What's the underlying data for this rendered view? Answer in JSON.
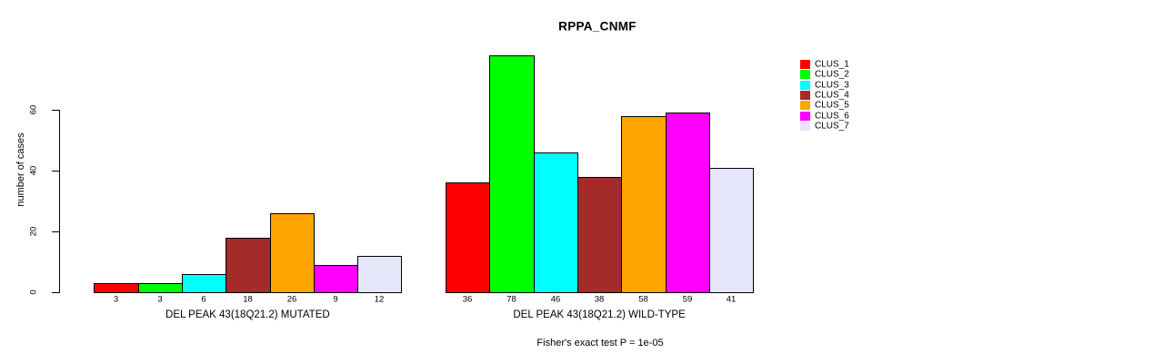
{
  "chart_data": {
    "type": "bar",
    "title": "RPPA_CNMF",
    "xlabel": "",
    "ylabel": "number of cases",
    "yticks": [
      0,
      20,
      40,
      60
    ],
    "ylim": [
      0,
      80
    ],
    "grid": false,
    "legend_position": "right",
    "clusters": [
      "CLUS_1",
      "CLUS_2",
      "CLUS_3",
      "CLUS_4",
      "CLUS_5",
      "CLUS_6",
      "CLUS_7"
    ],
    "colors": [
      "#FF0000",
      "#00FF00",
      "#00FFFF",
      "#A52A2A",
      "#FFA500",
      "#FF00FF",
      "#E6E6FA"
    ],
    "groups": [
      {
        "label": "DEL PEAK 43(18Q21.2) MUTATED",
        "values": [
          3,
          3,
          6,
          18,
          26,
          9,
          12
        ]
      },
      {
        "label": "DEL PEAK 43(18Q21.2) WILD-TYPE",
        "values": [
          36,
          78,
          46,
          38,
          58,
          59,
          41
        ]
      }
    ],
    "annotation": "Fisher's exact test P = 1e-05"
  }
}
